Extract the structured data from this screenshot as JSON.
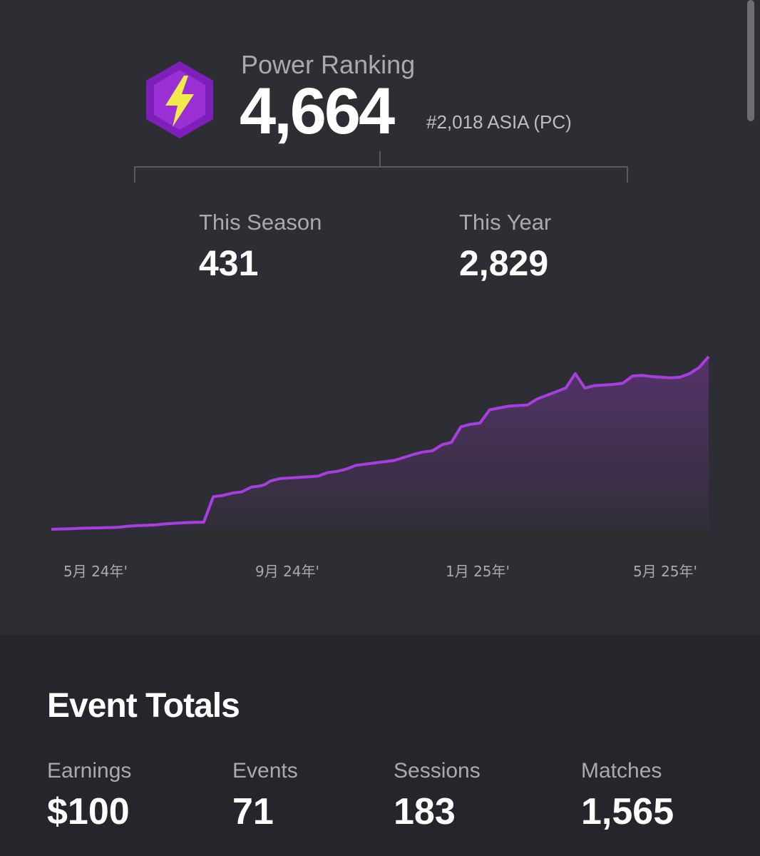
{
  "power_ranking": {
    "label": "Power Ranking",
    "value": "4,664",
    "rank": "#2,018 ASIA (PC)",
    "badge_icon": "lightning-bolt-hexagon-icon"
  },
  "stats": {
    "season_label": "This Season",
    "season_value": "431",
    "year_label": "This Year",
    "year_value": "2,829"
  },
  "chart_data": {
    "type": "area",
    "x_tick_labels": [
      "5月 24年'",
      "9月 24年'",
      "1月 25年'",
      "5月 25年'"
    ],
    "x": [
      0,
      0.1,
      0.15,
      0.2,
      0.25,
      0.3,
      0.35,
      0.4,
      0.45,
      0.5,
      0.55,
      0.6,
      0.65,
      0.7,
      0.75,
      0.8,
      0.85,
      0.9,
      0.95,
      1.0,
      1.05,
      1.1,
      1.12,
      1.15,
      1.2,
      1.3,
      1.4,
      1.45,
      1.5,
      1.55,
      1.6,
      1.7,
      1.8,
      1.9,
      1.95,
      2.0,
      2.05,
      2.1,
      2.15,
      2.2,
      2.25,
      2.3,
      2.4,
      2.45,
      2.5,
      2.55,
      2.6,
      2.65,
      2.7,
      2.75,
      2.8,
      2.85,
      2.9,
      2.95,
      3.0,
      3.05,
      3.1,
      3.15,
      3.2,
      3.25,
      3.3,
      3.35,
      3.4,
      3.45
    ],
    "values": [
      0,
      5,
      8,
      10,
      12,
      14,
      16,
      25,
      30,
      33,
      37,
      45,
      50,
      55,
      58,
      59,
      270,
      280,
      300,
      310,
      350,
      360,
      370,
      400,
      420,
      430,
      440,
      470,
      480,
      500,
      530,
      550,
      570,
      620,
      640,
      650,
      700,
      720,
      850,
      870,
      880,
      990,
      1020,
      1025,
      1030,
      1080,
      1110,
      1140,
      1170,
      1290,
      1170,
      1190,
      1195,
      1200,
      1210,
      1270,
      1275,
      1265,
      1260,
      1255,
      1260,
      1290,
      1340,
      1430
    ],
    "line_color": "#a83ee0",
    "fill_color": "#a83ee0",
    "grid": false
  },
  "event_totals": {
    "title": "Event Totals",
    "earnings_label": "Earnings",
    "earnings_value": "$100",
    "events_label": "Events",
    "events_value": "71",
    "sessions_label": "Sessions",
    "sessions_value": "183",
    "matches_label": "Matches",
    "matches_value": "1,565"
  }
}
